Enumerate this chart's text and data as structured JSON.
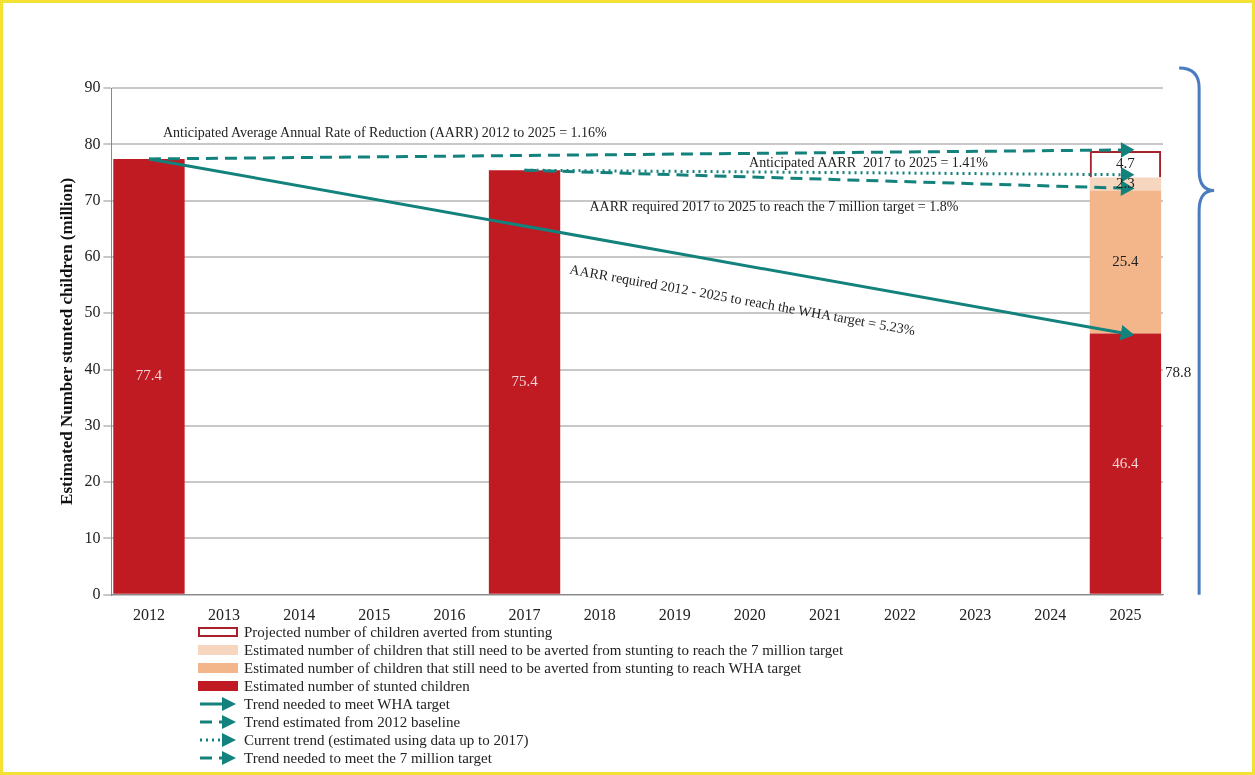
{
  "chart_data": {
    "type": "bar",
    "stacked": true,
    "ylabel": "Estimated Number stunted children (million)",
    "categories": [
      "2012",
      "2013",
      "2014",
      "2015",
      "2016",
      "2017",
      "2018",
      "2019",
      "2020",
      "2021",
      "2022",
      "2023",
      "2024",
      "2025"
    ],
    "series": [
      {
        "name": "Estimated number of stunted children",
        "color": "#c01a22",
        "values": [
          77.4,
          null,
          null,
          null,
          null,
          75.4,
          null,
          null,
          null,
          null,
          null,
          null,
          null,
          46.4
        ],
        "value_labels": [
          "77.4",
          null,
          null,
          null,
          null,
          "75.4",
          null,
          null,
          null,
          null,
          null,
          null,
          null,
          "46.4"
        ]
      },
      {
        "name": "Estimated number of children that still need to be averted from stunting to reach WHA target",
        "color": "#f2b68a",
        "values": [
          null,
          null,
          null,
          null,
          null,
          null,
          null,
          null,
          null,
          null,
          null,
          null,
          null,
          25.4
        ],
        "value_labels": [
          null,
          null,
          null,
          null,
          null,
          null,
          null,
          null,
          null,
          null,
          null,
          null,
          null,
          "25.4"
        ]
      },
      {
        "name": "Estimated number of children that still need to be averted from stunting to reach the 7 million target",
        "color": "#f7d6bf",
        "values": [
          null,
          null,
          null,
          null,
          null,
          null,
          null,
          null,
          null,
          null,
          null,
          null,
          null,
          2.3
        ],
        "value_labels": [
          null,
          null,
          null,
          null,
          null,
          null,
          null,
          null,
          null,
          null,
          null,
          null,
          null,
          "2.3"
        ]
      },
      {
        "name": "Projected number of children averted from stunting",
        "color": "#a8202a",
        "values": [
          null,
          null,
          null,
          null,
          null,
          null,
          null,
          null,
          null,
          null,
          null,
          null,
          null,
          4.7
        ],
        "value_labels": [
          null,
          null,
          null,
          null,
          null,
          null,
          null,
          null,
          null,
          null,
          null,
          null,
          null,
          "4.7"
        ]
      },
      {
        "name": "Trend needed to meet WHA target",
        "type": "line",
        "line_style": "solid",
        "color": "#14827c",
        "values": [
          77.4,
          null,
          null,
          null,
          null,
          null,
          null,
          null,
          null,
          null,
          null,
          null,
          null,
          46.4
        ]
      },
      {
        "name": "Trend estimated from 2012 baseline",
        "type": "line",
        "line_style": "dashed",
        "color": "#14827c",
        "values": [
          77.4,
          null,
          null,
          null,
          null,
          null,
          null,
          null,
          null,
          null,
          null,
          null,
          null,
          79
        ]
      },
      {
        "name": "Current trend (estimated using data up to 2017)",
        "type": "line",
        "line_style": "dotted",
        "color": "#14827c",
        "values": [
          null,
          null,
          null,
          null,
          null,
          75.4,
          null,
          null,
          null,
          null,
          null,
          null,
          null,
          74.6
        ]
      },
      {
        "name": "Trend needed to meet the 7 million target",
        "type": "line",
        "line_style": "dashed",
        "color": "#14827c",
        "values": [
          null,
          null,
          null,
          null,
          null,
          75.4,
          null,
          null,
          null,
          null,
          null,
          null,
          null,
          72.2
        ]
      }
    ],
    "ylim": [
      0,
      90
    ],
    "yticks": [
      0,
      10,
      20,
      30,
      40,
      50,
      60,
      70,
      80,
      90
    ],
    "grid": "y",
    "legend": "bottom",
    "marker": "triangle",
    "totals": [
      null,
      null,
      null,
      null,
      null,
      null,
      null,
      null,
      null,
      null,
      null,
      null,
      null,
      "78.8"
    ],
    "annotations": [
      "Anticipated Average Annual Rate of Reduction (AARR) 2012 to 2025 = 1.16%",
      "Anticipated AARR  2017 to 2025 = 1.41%",
      "AARR required 2017 to 2025 to reach the 7 million target = 1.8%",
      "AARR required 2012 - 2025 to reach the WHA target = 5.23%"
    ]
  }
}
